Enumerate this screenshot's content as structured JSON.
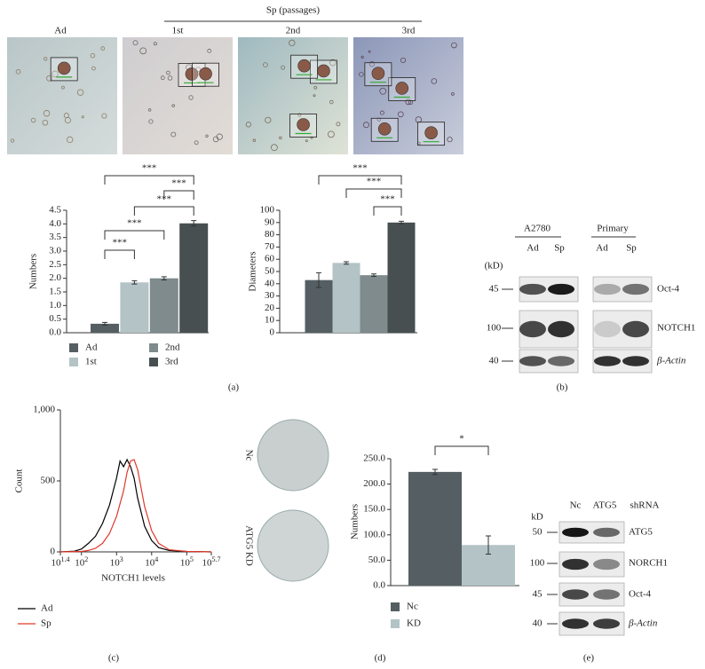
{
  "figure": {
    "panel_a": {
      "group_label": "Sp (passages)",
      "image_labels": [
        "Ad",
        "1st",
        "2nd",
        "3rd"
      ]
    },
    "panel_b": {
      "groups": [
        "A2780",
        "Primary"
      ],
      "lanes": [
        "Ad",
        "Sp",
        "Ad",
        "Sp"
      ],
      "unit": "(kD)",
      "markers": [
        45,
        100,
        40
      ],
      "proteins": [
        "Oct-4",
        "NOTCH1",
        "β-Actin"
      ]
    },
    "panel_d": {
      "colony_labels": [
        "Nc",
        "ATG5 KD"
      ]
    },
    "panel_e": {
      "lanes": [
        "Nc",
        "ATG5"
      ],
      "condition": "shRNA",
      "unit": "kD",
      "markers": [
        50,
        100,
        45,
        40
      ],
      "proteins": [
        "ATG5",
        "NORCH1",
        "Oct-4",
        "β-Actin"
      ]
    },
    "panel_letters": [
      "(a)",
      "(b)",
      "(c)",
      "(d)",
      "(e)"
    ]
  },
  "chart_data": [
    {
      "type": "bar",
      "y_label": "Numbers",
      "categories": [
        "Ad",
        "1st",
        "2nd",
        "3rd"
      ],
      "values": [
        0.33,
        1.85,
        2.0,
        4.02
      ],
      "errors": [
        0.05,
        0.06,
        0.06,
        0.1
      ],
      "colors": [
        "#555f63",
        "#b3c3c6",
        "#7f8b8d",
        "#474f51"
      ],
      "ylim": [
        0,
        4.5
      ],
      "yticks": [
        {
          "value": 0,
          "label": "0.0"
        },
        0.5,
        {
          "value": 1,
          "label": "1.0"
        },
        1.5,
        {
          "value": 2,
          "label": "2.0"
        },
        2.5,
        {
          "value": 3,
          "label": "3.0"
        },
        3.5,
        {
          "value": 4,
          "label": "4.0"
        },
        4.5
      ],
      "significance": [
        "***",
        "***",
        "***",
        "***",
        "***"
      ]
    },
    {
      "type": "bar",
      "y_label": "Diameters",
      "categories": [
        null,
        null,
        null,
        null
      ],
      "values": [
        43,
        57,
        47,
        90
      ],
      "errors": [
        6,
        1,
        1,
        1
      ],
      "colors": [
        "#555f63",
        "#b3c3c6",
        "#7f8b8d",
        "#474f51"
      ],
      "ylim": [
        0,
        100
      ],
      "yticks": [
        0,
        10,
        20,
        30,
        40,
        50,
        60,
        70,
        80,
        90,
        100
      ],
      "significance": [
        "***",
        "***",
        "***"
      ]
    },
    {
      "type": "line",
      "x_label": "NOTCH1 levels",
      "y_label": "Count",
      "xscale": "log",
      "xlim": [
        25.12,
        501187
      ],
      "ylim": [
        0,
        1000
      ],
      "xticks": [
        {
          "value": 25.12,
          "label": "10",
          "exponent": "1.4"
        },
        {
          "value": 100,
          "label": "10",
          "exponent": "2"
        },
        {
          "value": 1000,
          "label": "10",
          "exponent": "3"
        },
        {
          "value": 10000,
          "label": "10",
          "exponent": "4"
        },
        {
          "value": 100000,
          "label": "10",
          "exponent": "5"
        },
        {
          "value": 501187,
          "label": "10",
          "exponent": "5.7"
        }
      ],
      "yticks": [
        0,
        500,
        {
          "value": 1000,
          "label": "1,000"
        }
      ],
      "series": [
        {
          "name": "Ad",
          "color": "#000000",
          "x": [
            25,
            63,
            100,
            158,
            251,
            398,
            631,
            1000,
            1259,
            1585,
            1995,
            2512,
            3162,
            3981,
            6310,
            10000,
            15849,
            31623,
            100000,
            501187
          ],
          "values": [
            0,
            5,
            20,
            60,
            110,
            200,
            330,
            520,
            640,
            600,
            650,
            600,
            520,
            380,
            180,
            80,
            30,
            10,
            3,
            0
          ]
        },
        {
          "name": "Sp",
          "color": "#e0392b",
          "x": [
            25,
            100,
            158,
            251,
            398,
            631,
            1000,
            1585,
            1995,
            2512,
            3162,
            3981,
            5012,
            6310,
            10000,
            15849,
            31623,
            100000,
            501187
          ],
          "values": [
            0,
            3,
            10,
            25,
            60,
            130,
            250,
            430,
            560,
            640,
            650,
            580,
            450,
            320,
            150,
            60,
            15,
            3,
            0
          ]
        }
      ]
    },
    {
      "type": "bar",
      "y_label": "Numbers",
      "categories": [
        "Nc",
        "KD"
      ],
      "values": [
        224,
        80
      ],
      "errors": [
        5,
        18
      ],
      "colors": [
        "#555f63",
        "#b3c3c6"
      ],
      "ylim": [
        0,
        250
      ],
      "yticks": [
        {
          "value": 0,
          "label": "0.0"
        },
        {
          "value": 50,
          "label": "50.0"
        },
        {
          "value": 100,
          "label": "100.0"
        },
        {
          "value": 150,
          "label": "150.0"
        },
        {
          "value": 200,
          "label": "200.0"
        },
        {
          "value": 250,
          "label": "250.0"
        }
      ],
      "significance": [
        "*"
      ]
    }
  ]
}
